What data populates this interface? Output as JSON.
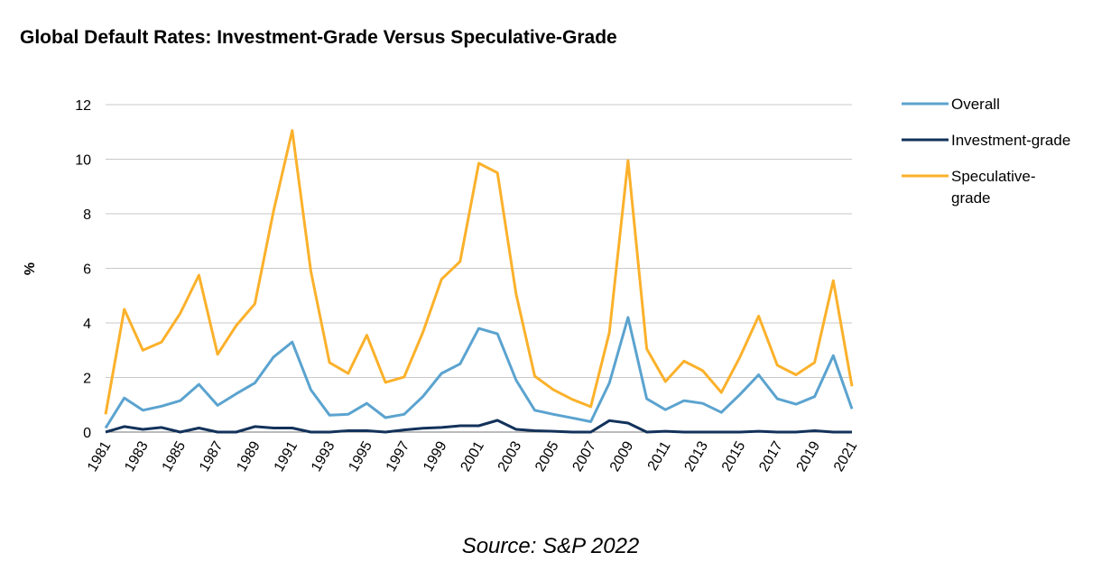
{
  "chart_data": {
    "type": "line",
    "title": "Global Default Rates: Investment-Grade Versus Speculative-Grade",
    "ylabel": "%",
    "xlabel": "",
    "ylim": [
      0,
      12
    ],
    "yticks": [
      "0",
      "2",
      "4",
      "6",
      "8",
      "10",
      "12"
    ],
    "grid": true,
    "legend_position": "right",
    "x": [
      1981,
      1982,
      1983,
      1984,
      1985,
      1986,
      1987,
      1988,
      1989,
      1990,
      1991,
      1992,
      1993,
      1994,
      1995,
      1996,
      1997,
      1998,
      1999,
      2000,
      2001,
      2002,
      2003,
      2004,
      2005,
      2006,
      2007,
      2008,
      2009,
      2010,
      2011,
      2012,
      2013,
      2014,
      2015,
      2016,
      2017,
      2018,
      2019,
      2020,
      2021
    ],
    "xticks": [
      "1981",
      "1983",
      "1985",
      "1987",
      "1989",
      "1991",
      "1993",
      "1995",
      "1997",
      "1999",
      "2001",
      "2003",
      "2005",
      "2007",
      "2009",
      "2011",
      "2013",
      "2015",
      "2017",
      "2019",
      "2021"
    ],
    "series": [
      {
        "name": "Overall",
        "color": "#5ba3cf",
        "values": [
          0.15,
          1.25,
          0.8,
          0.95,
          1.15,
          1.75,
          0.98,
          1.4,
          1.8,
          2.75,
          3.3,
          1.55,
          0.62,
          0.65,
          1.05,
          0.53,
          0.65,
          1.3,
          2.15,
          2.5,
          3.8,
          3.6,
          1.9,
          0.8,
          0.65,
          0.52,
          0.38,
          1.8,
          4.2,
          1.22,
          0.82,
          1.15,
          1.05,
          0.72,
          1.38,
          2.1,
          1.22,
          1.02,
          1.3,
          2.8,
          0.85
        ]
      },
      {
        "name": "Investment-grade",
        "color": "#13325a",
        "values": [
          0,
          0.2,
          0.1,
          0.17,
          0,
          0.15,
          0,
          0,
          0.2,
          0.15,
          0.15,
          0,
          0,
          0.05,
          0.05,
          0,
          0.08,
          0.14,
          0.17,
          0.23,
          0.23,
          0.43,
          0.1,
          0.05,
          0.03,
          0,
          0,
          0.42,
          0.33,
          0,
          0.03,
          0,
          0,
          0,
          0,
          0.03,
          0,
          0,
          0.05,
          0,
          0
        ]
      },
      {
        "name": "Speculative-grade",
        "color": "#fbb12b",
        "values": [
          0.65,
          4.5,
          3.0,
          3.3,
          4.35,
          5.75,
          2.85,
          3.9,
          4.7,
          8.1,
          11.05,
          5.9,
          2.55,
          2.15,
          3.55,
          1.82,
          2.02,
          3.65,
          5.6,
          6.25,
          9.85,
          9.5,
          5.05,
          2.05,
          1.55,
          1.2,
          0.93,
          3.65,
          9.95,
          3.05,
          1.85,
          2.6,
          2.25,
          1.45,
          2.75,
          4.25,
          2.45,
          2.1,
          2.55,
          5.55,
          1.68
        ]
      }
    ],
    "legend": [
      {
        "lines": [
          "Overall"
        ]
      },
      {
        "lines": [
          "Investment-grade"
        ]
      },
      {
        "lines": [
          "Speculative-",
          "grade"
        ]
      }
    ]
  },
  "footer": {
    "source": "Source: S&P 2022"
  }
}
